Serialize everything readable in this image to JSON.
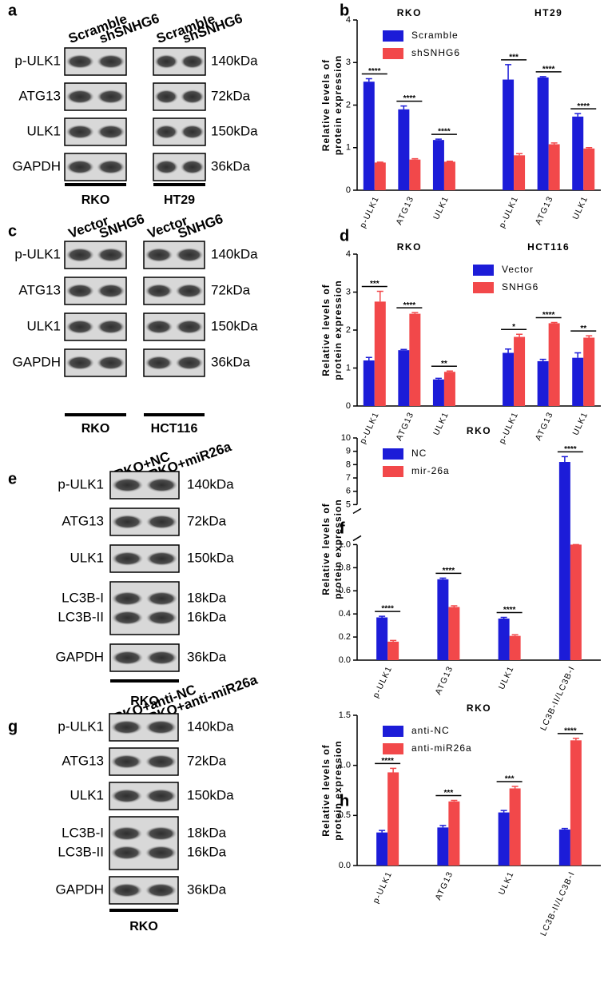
{
  "blots": [
    {
      "panel": "a",
      "lanes": [
        "Scramble",
        "shSNHG6",
        "Scramble",
        "shSNHG6"
      ],
      "groups": [
        "RKO",
        "HT29"
      ],
      "rows": [
        {
          "labels": [
            "p-ULK1"
          ],
          "sizes": [
            "140kDa"
          ]
        },
        {
          "labels": [
            "ATG13"
          ],
          "sizes": [
            "72kDa"
          ]
        },
        {
          "labels": [
            "ULK1"
          ],
          "sizes": [
            "150kDa"
          ]
        },
        {
          "labels": [
            "GAPDH"
          ],
          "sizes": [
            "36kDa"
          ]
        }
      ]
    },
    {
      "panel": "c",
      "lanes": [
        "Vector",
        "SNHG6",
        "Vector",
        "SNHG6"
      ],
      "groups": [
        "RKO",
        "HCT116"
      ],
      "rows": [
        {
          "labels": [
            "p-ULK1"
          ],
          "sizes": [
            "140kDa"
          ]
        },
        {
          "labels": [
            "ATG13"
          ],
          "sizes": [
            "72kDa"
          ]
        },
        {
          "labels": [
            "ULK1"
          ],
          "sizes": [
            "150kDa"
          ]
        },
        {
          "labels": [
            "GAPDH"
          ],
          "sizes": [
            "36kDa"
          ]
        }
      ]
    },
    {
      "panel": "e",
      "lanes": [
        "RKO+NC",
        "RKO+miR26a"
      ],
      "groups": [
        "RKO"
      ],
      "rows": [
        {
          "labels": [
            "p-ULK1"
          ],
          "sizes": [
            "140kDa"
          ]
        },
        {
          "labels": [
            "ATG13"
          ],
          "sizes": [
            "72kDa"
          ]
        },
        {
          "labels": [
            "ULK1"
          ],
          "sizes": [
            "150kDa"
          ]
        },
        {
          "labels": [
            "LC3B-I",
            "LC3B-II"
          ],
          "sizes": [
            "18kDa",
            "16kDa"
          ]
        },
        {
          "labels": [
            "GAPDH"
          ],
          "sizes": [
            "36kDa"
          ]
        }
      ]
    },
    {
      "panel": "g",
      "lanes": [
        "RKO+anti-NC",
        "RKO+anti-miR26a"
      ],
      "groups": [
        "RKO"
      ],
      "rows": [
        {
          "labels": [
            "p-ULK1"
          ],
          "sizes": [
            "140kDa"
          ]
        },
        {
          "labels": [
            "ATG13"
          ],
          "sizes": [
            "72kDa"
          ]
        },
        {
          "labels": [
            "ULK1"
          ],
          "sizes": [
            "150kDa"
          ]
        },
        {
          "labels": [
            "LC3B-I",
            "LC3B-II"
          ],
          "sizes": [
            "18kDa",
            "16kDa"
          ]
        },
        {
          "labels": [
            "GAPDH"
          ],
          "sizes": [
            "36kDa"
          ]
        }
      ]
    }
  ],
  "chart_data": [
    {
      "type": "bar",
      "panel": "b",
      "ylabel": [
        "Relative levels of",
        "protein expression"
      ],
      "legend": "top-left",
      "groups": [
        {
          "name": "RKO",
          "categories": [
            "p-ULK1",
            "ATG13",
            "ULK1"
          ]
        },
        {
          "name": "HT29",
          "categories": [
            "p-ULK1",
            "ATG13",
            "ULK1"
          ]
        }
      ],
      "series": [
        {
          "name": "Scramble",
          "color": "#1c1cd8",
          "values": [
            2.55,
            1.9,
            1.18,
            2.6,
            2.65,
            1.73
          ],
          "errors": [
            0.07,
            0.08,
            0.02,
            0.35,
            0.02,
            0.07
          ]
        },
        {
          "name": "shSNHG6",
          "color": "#f2484a",
          "values": [
            0.65,
            0.72,
            0.67,
            0.82,
            1.08,
            0.98
          ],
          "errors": [
            0.01,
            0.02,
            0.01,
            0.04,
            0.03,
            0.02
          ]
        }
      ],
      "significance": [
        "****",
        "****",
        "****",
        "***",
        "****",
        "****"
      ],
      "ylim": [
        0,
        4
      ],
      "yticks": [
        0,
        1,
        2,
        3,
        4
      ]
    },
    {
      "type": "bar",
      "panel": "d",
      "ylabel": [
        "Relative levels of",
        "protein expression"
      ],
      "legend": "top-right",
      "groups": [
        {
          "name": "RKO",
          "categories": [
            "p-ULK1",
            "ATG13",
            "ULK1"
          ]
        },
        {
          "name": "HCT116",
          "categories": [
            "p-ULK1",
            "ATG13",
            "ULK1"
          ]
        }
      ],
      "series": [
        {
          "name": "Vector",
          "color": "#1c1cd8",
          "values": [
            1.2,
            1.47,
            0.7,
            1.4,
            1.18,
            1.27
          ],
          "errors": [
            0.08,
            0.02,
            0.03,
            0.1,
            0.05,
            0.13
          ]
        },
        {
          "name": "SNHG6",
          "color": "#f2484a",
          "values": [
            2.75,
            2.43,
            0.9,
            1.82,
            2.18,
            1.8
          ],
          "errors": [
            0.27,
            0.03,
            0.02,
            0.07,
            0.02,
            0.05
          ]
        }
      ],
      "significance": [
        "***",
        "****",
        "**",
        "*",
        "****",
        "**"
      ],
      "ylim": [
        0,
        4
      ],
      "yticks": [
        0,
        1,
        2,
        3,
        4
      ]
    },
    {
      "type": "bar",
      "panel": "f",
      "title": "RKO",
      "ylabel": [
        "Relative levels of",
        "protein expression"
      ],
      "legend": "top-left",
      "categories": [
        "p-ULK1",
        "ATG13",
        "ULK1",
        "LC3B-II/LC3B-I"
      ],
      "series": [
        {
          "name": "NC",
          "color": "#1c1cd8",
          "values": [
            0.37,
            0.7,
            0.36,
            8.2
          ],
          "errors": [
            0.01,
            0.01,
            0.01,
            0.4
          ]
        },
        {
          "name": "mir-26a",
          "color": "#f2484a",
          "values": [
            0.16,
            0.46,
            0.21,
            1.0
          ],
          "errors": [
            0.01,
            0.01,
            0.01,
            0
          ]
        }
      ],
      "significance": [
        "****",
        "****",
        "****",
        "****"
      ],
      "ylim": [
        0,
        10
      ],
      "ybreak": [
        1,
        5
      ],
      "yticks": [
        {
          "value": 0,
          "label": "0.0"
        },
        {
          "value": 0.2,
          "label": "0.2"
        },
        {
          "value": 0.4,
          "label": "0.4"
        },
        {
          "value": 0.6,
          "label": "0.6"
        },
        {
          "value": 0.8,
          "label": "0.8"
        },
        {
          "value": 1,
          "label": "1.0"
        },
        5,
        6,
        7,
        8,
        9,
        10
      ]
    },
    {
      "type": "bar",
      "panel": "h",
      "title": "RKO",
      "ylabel": [
        "Relative levels of",
        "protein expression"
      ],
      "legend": "top-left",
      "categories": [
        "p-ULK1",
        "ATG13",
        "ULK1",
        "LC3B-II/LC3B-I"
      ],
      "series": [
        {
          "name": "anti-NC",
          "color": "#1c1cd8",
          "values": [
            0.33,
            0.38,
            0.53,
            0.36
          ],
          "errors": [
            0.02,
            0.02,
            0.02,
            0.01
          ]
        },
        {
          "name": "anti-miR26a",
          "color": "#f2484a",
          "values": [
            0.93,
            0.64,
            0.77,
            1.25
          ],
          "errors": [
            0.04,
            0.01,
            0.02,
            0.02
          ]
        }
      ],
      "significance": [
        "****",
        "***",
        "***",
        "****"
      ],
      "ylim": [
        0,
        1.5
      ],
      "yticks": [
        {
          "value": 0,
          "label": "0.0"
        },
        {
          "value": 0.5,
          "label": "0.5"
        },
        {
          "value": 1,
          "label": "1.0"
        },
        {
          "value": 1.5,
          "label": "1.5"
        }
      ]
    }
  ]
}
